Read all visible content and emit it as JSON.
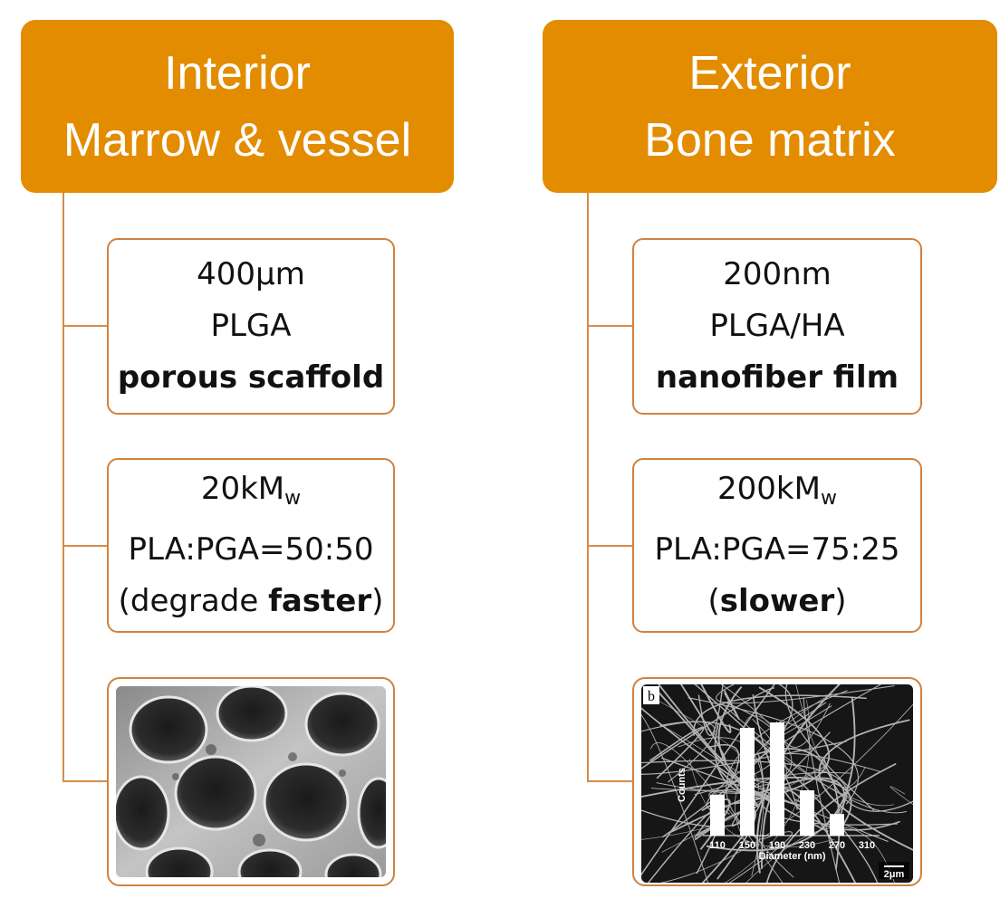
{
  "interior": {
    "title_line1": "Interior",
    "title_line2": "Marrow & vessel",
    "size": "400μm",
    "material": "PLGA",
    "form": "porous scaffold",
    "mw_value": "20kM",
    "mw_sub": "w",
    "ratio": "PLA:PGA=50:50",
    "degrade_open": "(degrade ",
    "degrade_bold": "faster",
    "degrade_close": ")",
    "image_icon": "porous-scaffold-sem-image"
  },
  "exterior": {
    "title_line1": "Exterior",
    "title_line2": "Bone matrix",
    "size": "200nm",
    "material": "PLGA/HA",
    "form": "nanofiber film",
    "mw_value": "200kM",
    "mw_sub": "w",
    "ratio": "PLA:PGA=75:25",
    "degrade_open": "(",
    "degrade_bold": "slower",
    "degrade_close": ")",
    "image_icon": "nanofiber-sem-image",
    "image_panel_label": "b",
    "scale_bar": "2μm"
  },
  "chart_data": {
    "type": "bar",
    "categories": [
      "110",
      "150",
      "190",
      "230",
      "270",
      "310"
    ],
    "values": [
      0.38,
      1.0,
      1.05,
      0.42,
      0.2,
      0
    ],
    "tick_labels": [
      "110",
      "150",
      "190",
      "230",
      "270",
      "310"
    ],
    "xlabel": "Diameter (nm)",
    "ylabel": "Counts"
  },
  "colors": {
    "accent": "#E38C00",
    "connector": "#D98B4A",
    "card_border": "#D0823F"
  }
}
